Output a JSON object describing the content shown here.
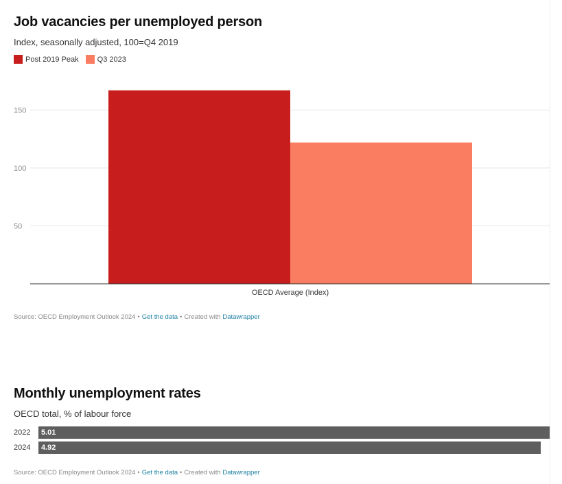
{
  "chart1": {
    "title": "Job vacancies per unemployed person",
    "subtitle": "Index, seasonally adjusted, 100=Q4 2019",
    "source": {
      "prefix": "Source: OECD Employment Outlook 2024",
      "get_data_label": "Get the data",
      "created_with": "Created with",
      "tool_name": "Datawrapper",
      "separator": "•"
    },
    "chart_data": {
      "type": "bar",
      "categories": [
        "OECD Average (Index)"
      ],
      "series": [
        {
          "name": "Post 2019 Peak",
          "values": [
            167
          ],
          "color": "#c71e1d"
        },
        {
          "name": "Q3 2023",
          "values": [
            122
          ],
          "color": "#fa7c61"
        }
      ],
      "ylim": [
        0,
        180
      ],
      "yticks": [
        50,
        100,
        150
      ],
      "grid": true,
      "legend_position": "top-left"
    }
  },
  "chart2": {
    "title": "Monthly unemployment rates",
    "subtitle": "OECD total, % of labour force",
    "source": {
      "prefix": "Source: OECD Employment Outlook 2024",
      "get_data_label": "Get the data",
      "created_with": "Created with",
      "tool_name": "Datawrapper",
      "separator": "•"
    },
    "chart_data": {
      "type": "bar",
      "orientation": "horizontal",
      "categories": [
        "2022",
        "2024"
      ],
      "values": [
        5.01,
        4.92
      ],
      "value_labels": [
        "5.01",
        "4.92"
      ],
      "xlim": [
        0,
        5.01
      ],
      "color": "#5e5e5e"
    }
  }
}
